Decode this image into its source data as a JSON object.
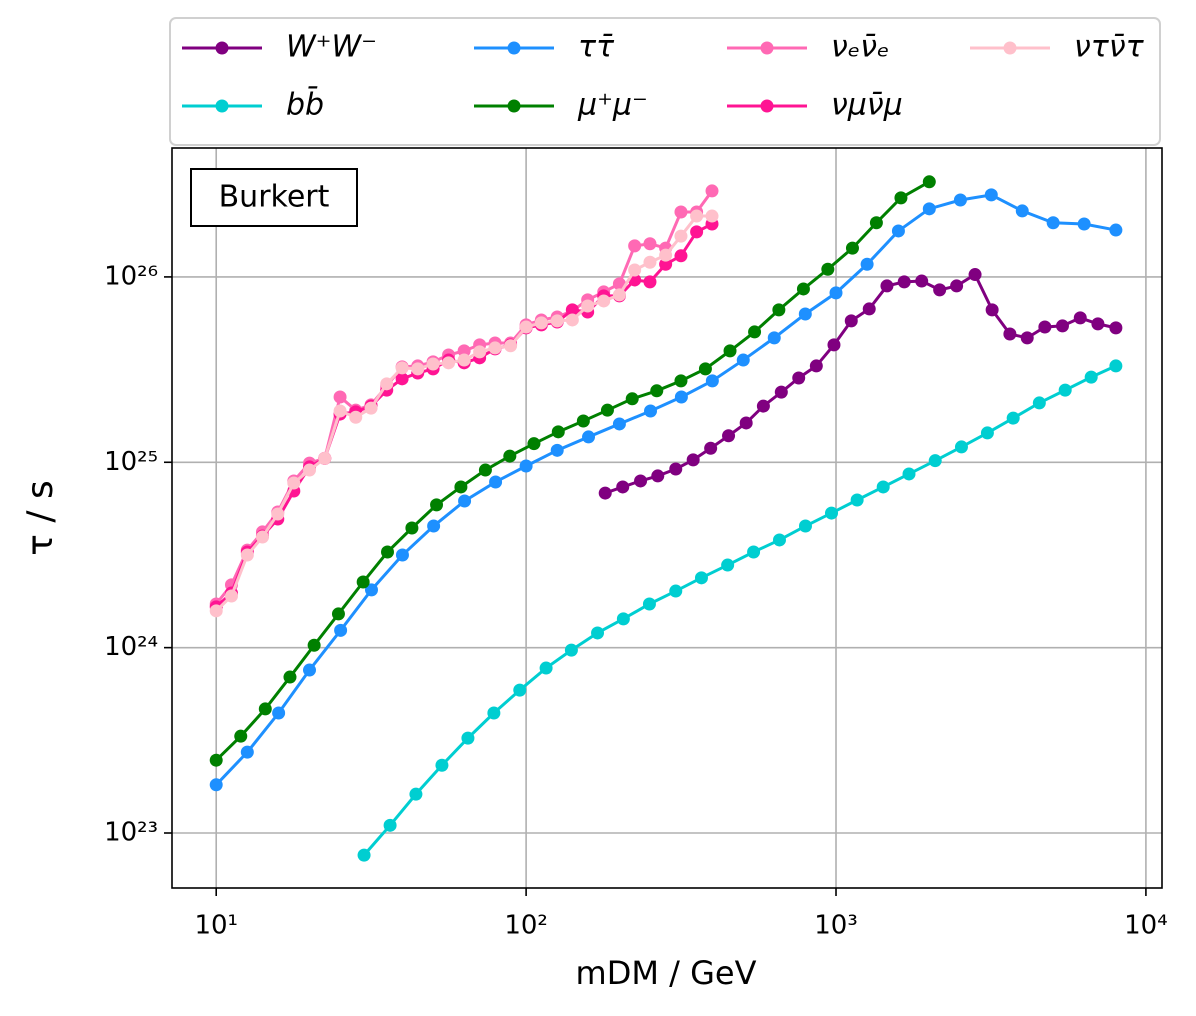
{
  "chart_data": {
    "type": "line",
    "xlabel": "mDM / GeV",
    "ylabel": "τ / s",
    "annotation": "Burkert",
    "xscale": "log",
    "yscale": "log",
    "grid": true,
    "legend": "top",
    "xlim": [
      7.2,
      11270
    ],
    "ylim": [
      5.05e+22,
      4.96e+26
    ],
    "xticks": [
      {
        "value": 10,
        "label": "10¹"
      },
      {
        "value": 100,
        "label": "10²"
      },
      {
        "value": 1000,
        "label": "10³"
      },
      {
        "value": 10000,
        "label": "10⁴"
      }
    ],
    "yticks": [
      {
        "value": 1e+23,
        "label": "10²³"
      },
      {
        "value": 1e+24,
        "label": "10²⁴"
      },
      {
        "value": 1e+25,
        "label": "10²⁵"
      },
      {
        "value": 1e+26,
        "label": "10²⁶"
      }
    ],
    "series": [
      {
        "name": "W⁺W⁻",
        "color": "#800080",
        "x": [
          180,
          205,
          234,
          266,
          304,
          346,
          394,
          450,
          513,
          583,
          666,
          758,
          864,
          985,
          1120,
          1280,
          1460,
          1660,
          1890,
          2160,
          2450,
          2810,
          3190,
          3640,
          4140,
          4720,
          5380,
          6140,
          7000,
          8000
        ],
        "values": [
          6.82e+24,
          7.36e+24,
          7.93e+24,
          8.44e+24,
          9.2e+24,
          1.03e+25,
          1.19e+25,
          1.39e+25,
          1.63e+25,
          2.01e+25,
          2.39e+25,
          2.85e+25,
          3.31e+25,
          4.3e+25,
          5.79e+25,
          6.72e+25,
          8.94e+25,
          9.4e+25,
          9.5e+25,
          8.51e+25,
          8.94e+25,
          1.03e+26,
          6.64e+25,
          4.92e+25,
          4.69e+25,
          5.37e+25,
          5.44e+25,
          6.01e+25,
          5.58e+25,
          5.31e+25
        ]
      },
      {
        "name": "bb̄",
        "color": "#00ced1",
        "x": [
          30,
          36.4,
          44.1,
          53.5,
          64.9,
          78.7,
          95.4,
          116,
          140,
          170,
          206,
          250,
          304,
          368,
          447,
          542,
          657,
          797,
          967,
          1170,
          1420,
          1720,
          2090,
          2540,
          3080,
          3730,
          4530,
          5490,
          6660,
          8000
        ],
        "values": [
          7.6e+22,
          1.1e+23,
          1.62e+23,
          2.32e+23,
          3.25e+23,
          4.44e+23,
          5.9e+23,
          7.76e+23,
          9.7e+23,
          1.2e+24,
          1.43e+24,
          1.72e+24,
          2.02e+24,
          2.38e+24,
          2.79e+24,
          3.28e+24,
          3.81e+24,
          4.53e+24,
          5.32e+24,
          6.26e+24,
          7.36e+24,
          8.65e+24,
          1.02e+25,
          1.21e+25,
          1.44e+25,
          1.73e+25,
          2.09e+25,
          2.45e+25,
          2.88e+25,
          3.31e+25
        ]
      },
      {
        "name": "ττ̄",
        "color": "#1e90ff",
        "x": [
          10,
          12.6,
          15.9,
          20,
          25.2,
          31.7,
          39.9,
          50.3,
          63.3,
          79.7,
          100,
          126,
          159,
          200,
          252,
          317,
          399,
          502,
          632,
          796,
          1000,
          1260,
          1590,
          2000,
          2520,
          3170,
          3990,
          5020,
          6320,
          8000
        ],
        "values": [
          1.82e+23,
          2.73e+23,
          4.44e+23,
          7.57e+23,
          1.24e+24,
          2.05e+24,
          3.16e+24,
          4.53e+24,
          6.18e+24,
          7.83e+24,
          9.55e+24,
          1.16e+25,
          1.37e+25,
          1.61e+25,
          1.89e+25,
          2.25e+25,
          2.75e+25,
          3.56e+25,
          4.69e+25,
          6.31e+25,
          8.2e+25,
          1.17e+26,
          1.77e+26,
          2.33e+26,
          2.6e+26,
          2.77e+26,
          2.27e+26,
          1.96e+26,
          1.93e+26,
          1.79e+26
        ]
      },
      {
        "name": "μ⁺μ⁻",
        "color": "#008000",
        "x": [
          10,
          12,
          14.4,
          17.3,
          20.7,
          24.8,
          29.8,
          35.7,
          42.8,
          51.4,
          61.6,
          73.9,
          88.6,
          106,
          127,
          153,
          183,
          220,
          264,
          316,
          379,
          455,
          546,
          654,
          785,
          941,
          1130,
          1350,
          1620,
          2000
        ],
        "values": [
          2.47e+23,
          3.33e+23,
          4.67e+23,
          6.94e+23,
          1.03e+24,
          1.52e+24,
          2.26e+24,
          3.28e+24,
          4.42e+24,
          5.89e+24,
          7.36e+24,
          9.08e+24,
          1.08e+25,
          1.26e+25,
          1.46e+25,
          1.67e+25,
          1.91e+25,
          2.2e+25,
          2.43e+25,
          2.75e+25,
          3.19e+25,
          3.99e+25,
          5.05e+25,
          6.64e+25,
          8.61e+25,
          1.1e+26,
          1.43e+26,
          1.96e+26,
          2.67e+26,
          3.26e+26
        ]
      },
      {
        "name": "νₑν̄ₑ",
        "color": "#ff69b4",
        "x": [
          10,
          11.2,
          12.6,
          14.1,
          15.8,
          17.8,
          20,
          22.4,
          25.1,
          28.2,
          31.6,
          35.5,
          39.8,
          44.7,
          50.1,
          56.2,
          63.1,
          70.8,
          79.4,
          89.1,
          100,
          112,
          126,
          141,
          158,
          178,
          200,
          224,
          251,
          282,
          316,
          355,
          398
        ],
        "values": [
          1.72e+24,
          2.18e+24,
          3.36e+24,
          4.21e+24,
          5.39e+24,
          7.93e+24,
          9.9e+24,
          1.05e+25,
          2.25e+25,
          1.91e+25,
          2.04e+25,
          2.58e+25,
          3.27e+25,
          3.31e+25,
          3.48e+25,
          3.79e+25,
          3.99e+25,
          4.3e+25,
          4.4e+25,
          4.4e+25,
          5.51e+25,
          5.86e+25,
          6.08e+25,
          6.56e+25,
          7.52e+25,
          8.3e+25,
          9.17e+25,
          1.47e+26,
          1.51e+26,
          1.43e+26,
          2.24e+26,
          2.24e+26,
          2.91e+26
        ]
      },
      {
        "name": "νμν̄μ",
        "color": "#ff1493",
        "x": [
          10,
          11.2,
          12.6,
          14.1,
          15.8,
          17.8,
          20,
          22.4,
          25.1,
          28.2,
          31.6,
          35.5,
          39.8,
          44.7,
          50.1,
          56.2,
          63.1,
          70.8,
          79.4,
          89.1,
          100,
          112,
          126,
          141,
          158,
          178,
          200,
          224,
          251,
          282,
          316,
          355,
          398
        ],
        "values": [
          1.66e+24,
          1.97e+24,
          3.28e+24,
          4e+24,
          4.94e+24,
          7e+24,
          9.44e+24,
          1.05e+25,
          1.82e+25,
          1.87e+25,
          2.01e+25,
          2.45e+25,
          2.82e+25,
          3.03e+25,
          3.19e+25,
          3.56e+25,
          3.44e+25,
          3.66e+25,
          4.09e+25,
          4.3e+25,
          5.31e+25,
          5.51e+25,
          5.71e+25,
          6.64e+25,
          6.47e+25,
          7.9e+25,
          7.9e+25,
          9.63e+25,
          9.4e+25,
          1.17e+26,
          1.3e+26,
          1.75e+26,
          1.93e+26
        ]
      },
      {
        "name": "ντν̄τ",
        "color": "#ffc0cb",
        "x": [
          10,
          11.2,
          12.6,
          14.1,
          15.8,
          17.8,
          20,
          22.4,
          25.1,
          28.2,
          31.6,
          35.5,
          39.8,
          44.7,
          50.1,
          56.2,
          63.1,
          70.8,
          79.4,
          89.1,
          100,
          112,
          126,
          141,
          158,
          178,
          200,
          224,
          251,
          282,
          316,
          355,
          398
        ],
        "values": [
          1.58e+24,
          1.9e+24,
          3.16e+24,
          3.95e+24,
          5.26e+24,
          7.73e+24,
          9.08e+24,
          1.05e+25,
          1.89e+25,
          1.75e+25,
          1.96e+25,
          2.65e+25,
          3.23e+25,
          3.19e+25,
          3.39e+25,
          3.44e+25,
          3.56e+25,
          3.94e+25,
          4.14e+25,
          4.25e+25,
          5.37e+25,
          5.65e+25,
          5.79e+25,
          5.86e+25,
          6.97e+25,
          7.42e+25,
          8e+25,
          1.09e+26,
          1.2e+26,
          1.31e+26,
          1.66e+26,
          2.13e+26,
          2.13e+26
        ]
      }
    ]
  }
}
